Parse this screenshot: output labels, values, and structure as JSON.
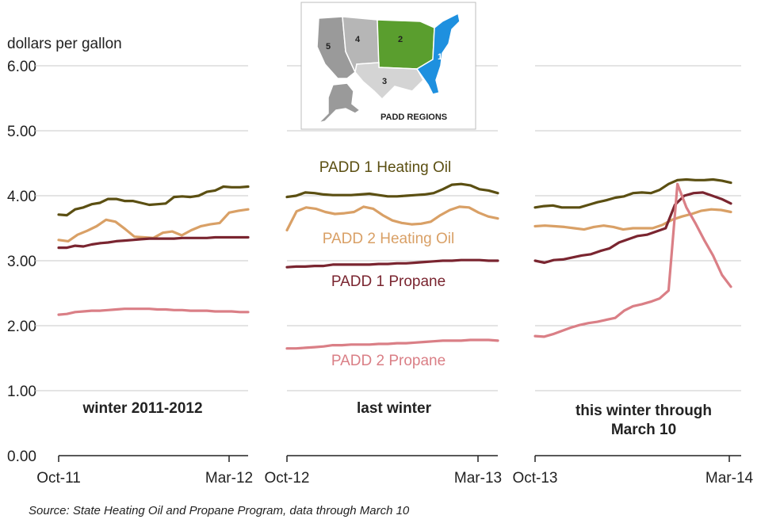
{
  "chart_data": {
    "type": "line",
    "ylabel": "dollars per gallon",
    "ylim": [
      0,
      6
    ],
    "yticks": [
      "6.00",
      "5.00",
      "4.00",
      "3.00",
      "2.00",
      "1.00",
      "0.00"
    ],
    "grid": true,
    "panels": [
      {
        "title": "winter 2011-2012",
        "x_start": "Oct-11",
        "x_end": "Mar-12",
        "series": [
          {
            "id": "p1ho",
            "values": [
              3.71,
              3.7,
              3.79,
              3.82,
              3.87,
              3.89,
              3.95,
              3.95,
              3.92,
              3.92,
              3.89,
              3.86,
              3.87,
              3.88,
              3.98,
              3.99,
              3.98,
              4.0,
              4.06,
              4.08,
              4.14,
              4.13,
              4.13,
              4.14
            ]
          },
          {
            "id": "p2ho",
            "values": [
              3.32,
              3.3,
              3.4,
              3.46,
              3.53,
              3.63,
              3.6,
              3.49,
              3.37,
              3.36,
              3.35,
              3.43,
              3.45,
              3.39,
              3.47,
              3.53,
              3.56,
              3.58,
              3.74,
              3.77,
              3.79
            ]
          },
          {
            "id": "p1pr",
            "values": [
              3.2,
              3.2,
              3.23,
              3.22,
              3.25,
              3.27,
              3.28,
              3.3,
              3.31,
              3.32,
              3.33,
              3.34,
              3.34,
              3.34,
              3.34,
              3.35,
              3.35,
              3.35,
              3.35,
              3.36,
              3.36,
              3.36,
              3.36,
              3.36
            ]
          },
          {
            "id": "p2pr",
            "values": [
              2.17,
              2.18,
              2.21,
              2.22,
              2.23,
              2.23,
              2.24,
              2.25,
              2.26,
              2.26,
              2.26,
              2.26,
              2.25,
              2.25,
              2.24,
              2.24,
              2.23,
              2.23,
              2.23,
              2.22,
              2.22,
              2.22,
              2.21,
              2.21
            ]
          }
        ]
      },
      {
        "title": "last winter",
        "x_start": "Oct-12",
        "x_end": "Mar-13",
        "series": [
          {
            "id": "p1ho",
            "values": [
              3.98,
              4.0,
              4.05,
              4.04,
              4.02,
              4.01,
              4.01,
              4.01,
              4.02,
              4.03,
              4.01,
              3.99,
              3.99,
              4.0,
              4.01,
              4.02,
              4.04,
              4.1,
              4.17,
              4.18,
              4.16,
              4.1,
              4.08,
              4.04
            ]
          },
          {
            "id": "p2ho",
            "values": [
              3.47,
              3.76,
              3.82,
              3.8,
              3.75,
              3.72,
              3.73,
              3.75,
              3.83,
              3.8,
              3.7,
              3.62,
              3.58,
              3.56,
              3.57,
              3.6,
              3.7,
              3.78,
              3.83,
              3.82,
              3.74,
              3.68,
              3.65
            ]
          },
          {
            "id": "p1pr",
            "values": [
              2.9,
              2.91,
              2.91,
              2.92,
              2.92,
              2.94,
              2.94,
              2.94,
              2.94,
              2.94,
              2.95,
              2.95,
              2.96,
              2.96,
              2.97,
              2.98,
              2.99,
              3.0,
              3.0,
              3.01,
              3.01,
              3.01,
              3.0,
              3.0
            ]
          },
          {
            "id": "p2pr",
            "values": [
              1.65,
              1.65,
              1.66,
              1.67,
              1.68,
              1.7,
              1.7,
              1.71,
              1.71,
              1.71,
              1.72,
              1.72,
              1.73,
              1.73,
              1.74,
              1.75,
              1.76,
              1.77,
              1.77,
              1.77,
              1.78,
              1.78,
              1.78,
              1.77
            ]
          }
        ]
      },
      {
        "title": "this winter through March 10",
        "x_start": "Oct-13",
        "x_end": "Mar-14",
        "series": [
          {
            "id": "p1ho",
            "values": [
              3.82,
              3.84,
              3.85,
              3.82,
              3.82,
              3.82,
              3.86,
              3.9,
              3.93,
              3.97,
              3.99,
              4.04,
              4.05,
              4.04,
              4.09,
              4.18,
              4.24,
              4.25,
              4.24,
              4.24,
              4.25,
              4.23,
              4.2
            ]
          },
          {
            "id": "p2ho",
            "values": [
              3.53,
              3.54,
              3.53,
              3.52,
              3.5,
              3.48,
              3.52,
              3.54,
              3.52,
              3.48,
              3.5,
              3.5,
              3.5,
              3.55,
              3.63,
              3.68,
              3.72,
              3.77,
              3.79,
              3.78,
              3.75
            ]
          },
          {
            "id": "p1pr",
            "values": [
              3.0,
              2.97,
              3.01,
              3.02,
              3.05,
              3.08,
              3.1,
              3.15,
              3.19,
              3.28,
              3.33,
              3.38,
              3.4,
              3.45,
              3.5,
              3.86,
              4.0,
              4.04,
              4.05,
              4.0,
              3.95,
              3.88
            ]
          },
          {
            "id": "p2pr",
            "values": [
              1.84,
              1.83,
              1.87,
              1.92,
              1.97,
              2.01,
              2.04,
              2.06,
              2.09,
              2.12,
              2.23,
              2.3,
              2.33,
              2.37,
              2.42,
              2.54,
              4.18,
              3.82,
              3.58,
              3.32,
              3.08,
              2.78,
              2.6
            ]
          }
        ]
      }
    ],
    "series_labels": [
      {
        "id": "p1ho",
        "name": "PADD 1 Heating Oil",
        "color": "#5b4f12"
      },
      {
        "id": "p2ho",
        "name": "PADD 2 Heating Oil",
        "color": "#d9a066"
      },
      {
        "id": "p1pr",
        "name": "PADD 1 Propane",
        "color": "#7a2530"
      },
      {
        "id": "p2pr",
        "name": "PADD 2 Propane",
        "color": "#da7f86"
      }
    ]
  },
  "map": {
    "title": "PADD REGIONS",
    "regions": [
      "1",
      "2",
      "3",
      "4",
      "5"
    ],
    "colors": {
      "1": "#1e90df",
      "2": "#5a9e2e",
      "3": "#d4d4d4",
      "4": "#b6b6b6",
      "5": "#9a9a9a"
    }
  },
  "source": "Source: State Heating Oil and Propane Program, data through March 10"
}
